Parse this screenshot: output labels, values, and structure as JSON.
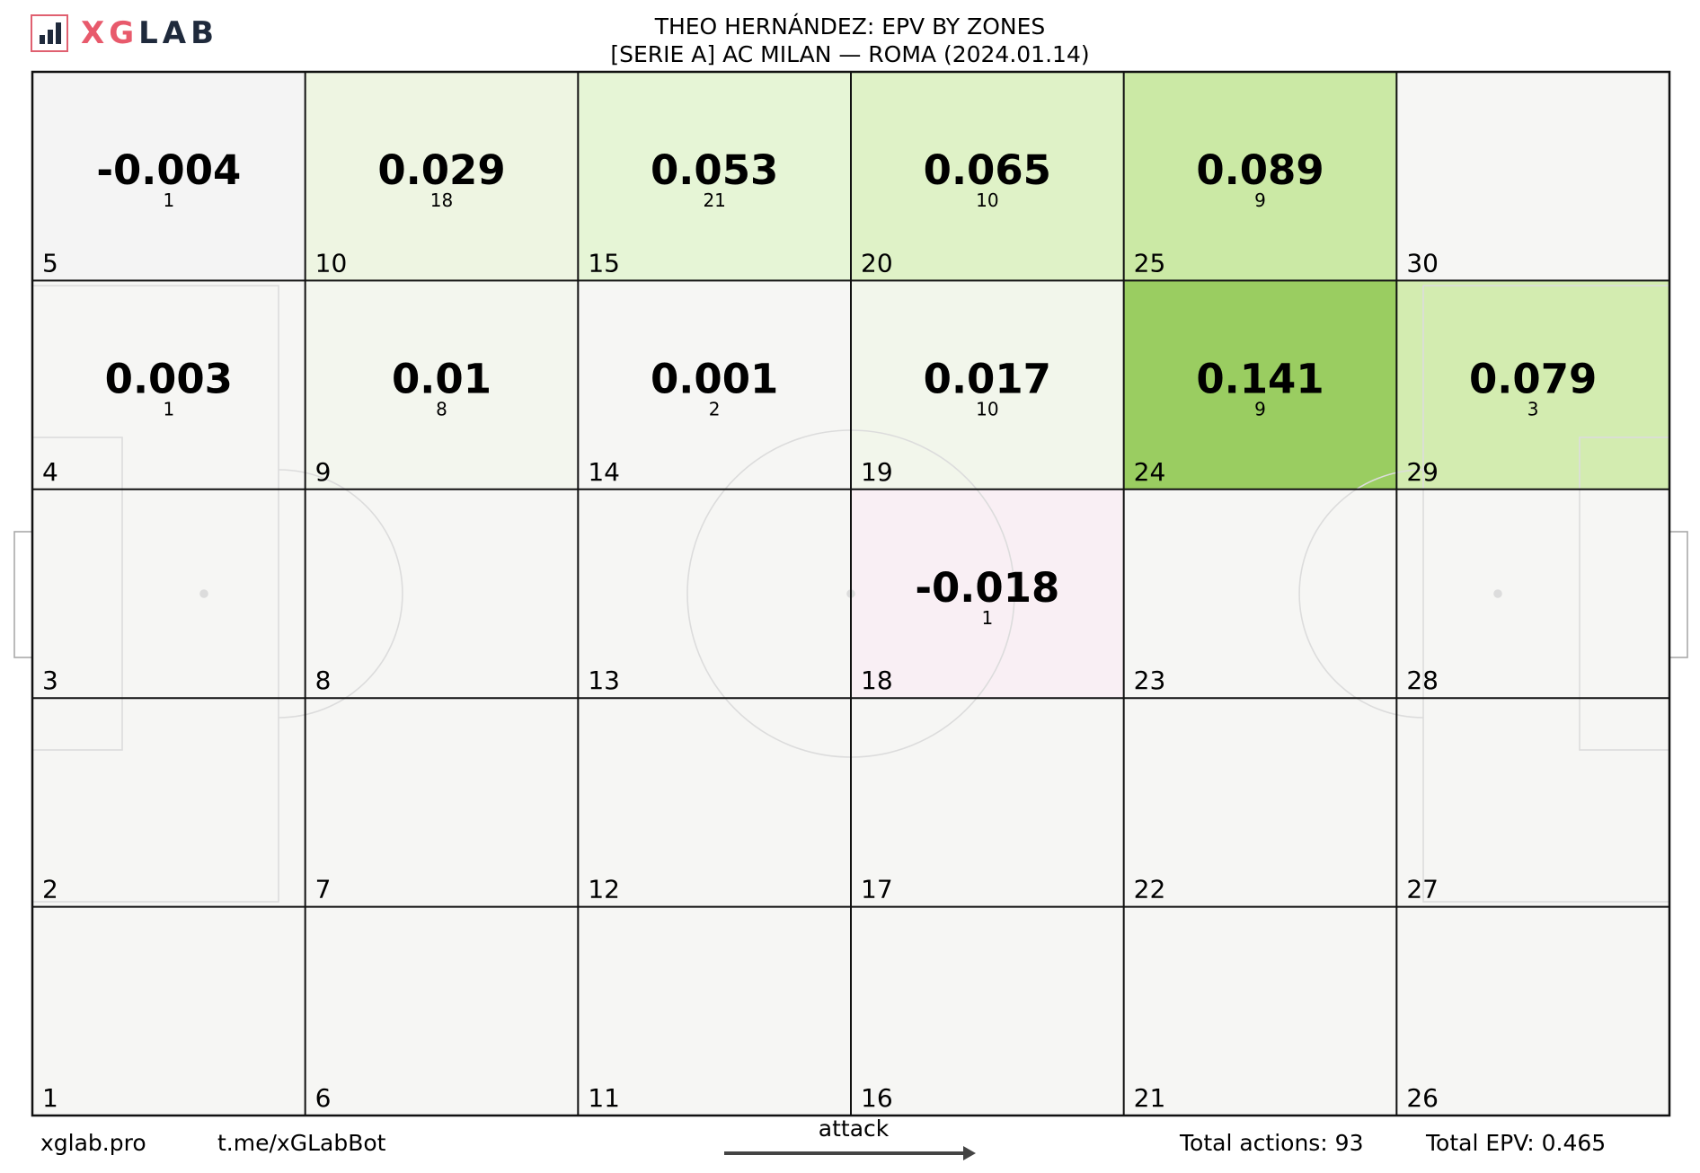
{
  "brand": {
    "logo_x": "XG",
    "logo_lab": "LAB",
    "accent": "#e85a6c",
    "dark": "#1f2a3c"
  },
  "title": {
    "line1": "THEO HERNÁNDEZ: EPV BY ZONES",
    "line2": "[SERIE A] AC MILAN —  ROMA (2024.01.14)"
  },
  "footer": {
    "site": "xglab.pro",
    "telegram": "t.me/xGLabBot",
    "attack": "attack",
    "total_actions": "Total actions: 93",
    "total_epv": "Total EPV: 0.465"
  },
  "chart_data": {
    "type": "heatmap",
    "grid": {
      "columns": 6,
      "rows": 5
    },
    "zones": [
      {
        "zone": 5,
        "col": 0,
        "row": 0,
        "epv": -0.004,
        "actions": 1,
        "color": "#f4f4f4",
        "epv_label": "-0.004",
        "actions_label": "1"
      },
      {
        "zone": 10,
        "col": 1,
        "row": 0,
        "epv": 0.029,
        "actions": 18,
        "color": "#eef5e2",
        "epv_label": "0.029",
        "actions_label": "18"
      },
      {
        "zone": 15,
        "col": 2,
        "row": 0,
        "epv": 0.053,
        "actions": 21,
        "color": "#e6f5d6",
        "epv_label": "0.053",
        "actions_label": "21"
      },
      {
        "zone": 20,
        "col": 3,
        "row": 0,
        "epv": 0.065,
        "actions": 10,
        "color": "#dff2c7",
        "epv_label": "0.065",
        "actions_label": "10"
      },
      {
        "zone": 25,
        "col": 4,
        "row": 0,
        "epv": 0.089,
        "actions": 9,
        "color": "#cbe9a5",
        "epv_label": "0.089",
        "actions_label": "9"
      },
      {
        "zone": 30,
        "col": 5,
        "row": 0,
        "color": "#f6f6f4"
      },
      {
        "zone": 4,
        "col": 0,
        "row": 1,
        "epv": 0.003,
        "actions": 1,
        "color": "#f6f6f4",
        "epv_label": "0.003",
        "actions_label": "1"
      },
      {
        "zone": 9,
        "col": 1,
        "row": 1,
        "epv": 0.01,
        "actions": 8,
        "color": "#f3f6ee",
        "epv_label": "0.01",
        "actions_label": "8"
      },
      {
        "zone": 14,
        "col": 2,
        "row": 1,
        "epv": 0.001,
        "actions": 2,
        "color": "#f6f6f4",
        "epv_label": "0.001",
        "actions_label": "2"
      },
      {
        "zone": 19,
        "col": 3,
        "row": 1,
        "epv": 0.017,
        "actions": 10,
        "color": "#f2f6eb",
        "epv_label": "0.017",
        "actions_label": "10"
      },
      {
        "zone": 24,
        "col": 4,
        "row": 1,
        "epv": 0.141,
        "actions": 9,
        "color": "#9acd61",
        "epv_label": "0.141",
        "actions_label": "9"
      },
      {
        "zone": 29,
        "col": 5,
        "row": 1,
        "epv": 0.079,
        "actions": 3,
        "color": "#d3ecb0",
        "epv_label": "0.079",
        "actions_label": "3"
      },
      {
        "zone": 3,
        "col": 0,
        "row": 2,
        "color": "#f6f6f4"
      },
      {
        "zone": 8,
        "col": 1,
        "row": 2,
        "color": "#f6f6f4"
      },
      {
        "zone": 13,
        "col": 2,
        "row": 2,
        "color": "#f6f6f4"
      },
      {
        "zone": 18,
        "col": 3,
        "row": 2,
        "epv": -0.018,
        "actions": 1,
        "color": "#f9eff4",
        "epv_label": "-0.018",
        "actions_label": "1"
      },
      {
        "zone": 23,
        "col": 4,
        "row": 2,
        "color": "#f6f6f4"
      },
      {
        "zone": 28,
        "col": 5,
        "row": 2,
        "color": "#f6f6f4"
      },
      {
        "zone": 2,
        "col": 0,
        "row": 3,
        "color": "#f6f6f4"
      },
      {
        "zone": 7,
        "col": 1,
        "row": 3,
        "color": "#f6f6f4"
      },
      {
        "zone": 12,
        "col": 2,
        "row": 3,
        "color": "#f6f6f4"
      },
      {
        "zone": 17,
        "col": 3,
        "row": 3,
        "color": "#f6f6f4"
      },
      {
        "zone": 22,
        "col": 4,
        "row": 3,
        "color": "#f6f6f4"
      },
      {
        "zone": 27,
        "col": 5,
        "row": 3,
        "color": "#f6f6f4"
      },
      {
        "zone": 1,
        "col": 0,
        "row": 4,
        "color": "#f6f6f4"
      },
      {
        "zone": 6,
        "col": 1,
        "row": 4,
        "color": "#f6f6f4"
      },
      {
        "zone": 11,
        "col": 2,
        "row": 4,
        "color": "#f6f6f4"
      },
      {
        "zone": 16,
        "col": 3,
        "row": 4,
        "color": "#f6f6f4"
      },
      {
        "zone": 21,
        "col": 4,
        "row": 4,
        "color": "#f6f6f4"
      },
      {
        "zone": 26,
        "col": 5,
        "row": 4,
        "color": "#f6f6f4"
      }
    ]
  }
}
